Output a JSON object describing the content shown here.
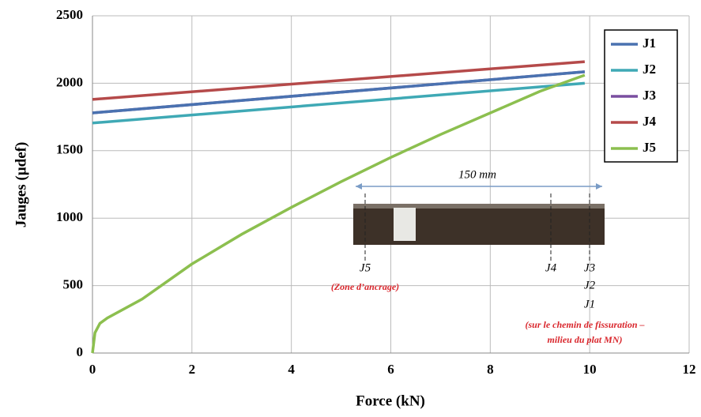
{
  "chart_data": {
    "type": "line",
    "xlabel": "Force (kN)",
    "ylabel": "Jauges (µdef)",
    "xlim": [
      0,
      12
    ],
    "xticks": [
      0,
      2,
      4,
      6,
      8,
      10,
      12
    ],
    "ylim": [
      0,
      2500
    ],
    "yticks": [
      0,
      500,
      1000,
      1500,
      2000,
      2500
    ],
    "grid": true,
    "legend": "upper right",
    "series": [
      {
        "name": "J1",
        "color": "#4a72b0",
        "x": [
          0,
          9.9
        ],
        "values": [
          1780,
          2085
        ]
      },
      {
        "name": "J2",
        "color": "#3fa9b5",
        "x": [
          0,
          9.9
        ],
        "values": [
          1705,
          2000
        ]
      },
      {
        "name": "J3",
        "color": "#7a4fa0",
        "x": [
          0,
          9.9
        ],
        "values": [
          1780,
          2085
        ]
      },
      {
        "name": "J4",
        "color": "#b54a4a",
        "x": [
          0,
          9.9
        ],
        "values": [
          1880,
          2160
        ]
      },
      {
        "name": "J5",
        "color": "#8cbf4f",
        "x": [
          0,
          0.05,
          0.15,
          0.3,
          1,
          2,
          3,
          4,
          5,
          6,
          7,
          8,
          9,
          9.9
        ],
        "values": [
          0,
          150,
          220,
          260,
          400,
          660,
          880,
          1080,
          1270,
          1450,
          1620,
          1780,
          1940,
          2060
        ]
      }
    ],
    "annotations": [
      "150 mm",
      "J5",
      "(Zone d’ancrage)",
      "J4",
      "J3",
      "J2",
      "J1",
      "(sur le chemin de fissuration –",
      "milieu du plat MN)"
    ]
  }
}
